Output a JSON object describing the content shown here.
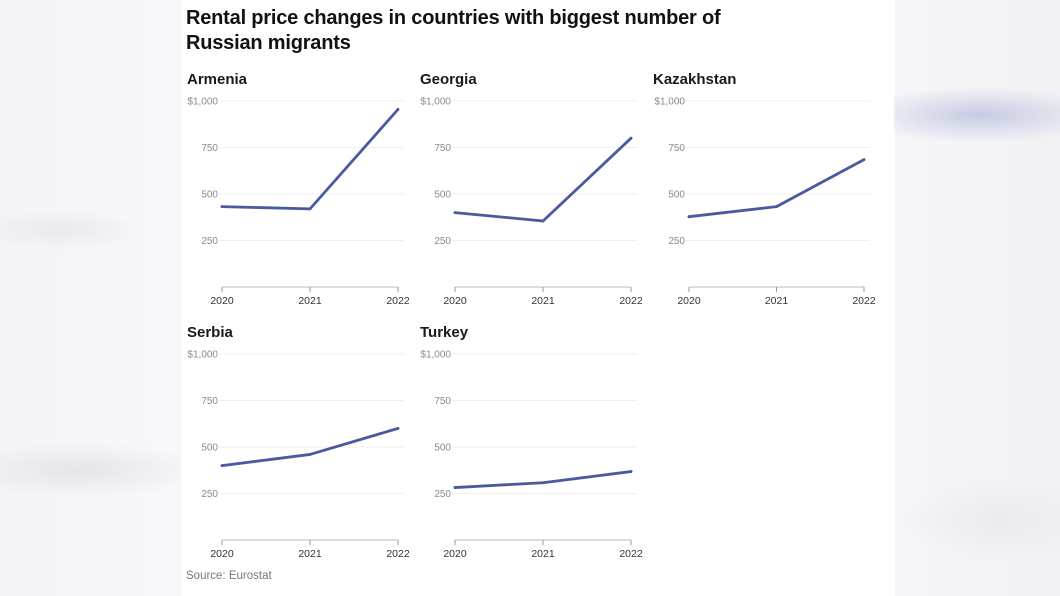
{
  "title": "Rental price changes in countries with biggest number of Russian migrants",
  "source": "Source: Eurostat",
  "colors": {
    "line": "#4a5a9e",
    "grid": "#efefef",
    "axis": "#c9c9c9"
  },
  "chart_data": [
    {
      "type": "line",
      "title": "Armenia",
      "x": [
        "2020",
        "2021",
        "2022"
      ],
      "values": [
        432,
        420,
        955
      ],
      "y_ticks": [
        250,
        500,
        750,
        1000
      ],
      "y_tick_labels": [
        "250",
        "500",
        "750",
        "$1,000"
      ],
      "ylim": [
        0,
        1000
      ]
    },
    {
      "type": "line",
      "title": "Georgia",
      "x": [
        "2020",
        "2021",
        "2022"
      ],
      "values": [
        400,
        355,
        800
      ],
      "y_ticks": [
        250,
        500,
        750,
        1000
      ],
      "y_tick_labels": [
        "250",
        "500",
        "750",
        "$1,000"
      ],
      "ylim": [
        0,
        1000
      ]
    },
    {
      "type": "line",
      "title": "Kazakhstan",
      "x": [
        "2020",
        "2021",
        "2022"
      ],
      "values": [
        378,
        432,
        685
      ],
      "y_ticks": [
        250,
        500,
        750,
        1000
      ],
      "y_tick_labels": [
        "250",
        "500",
        "750",
        "$1,000"
      ],
      "ylim": [
        0,
        1000
      ]
    },
    {
      "type": "line",
      "title": "Serbia",
      "x": [
        "2020",
        "2021",
        "2022"
      ],
      "values": [
        400,
        460,
        600
      ],
      "y_ticks": [
        250,
        500,
        750,
        1000
      ],
      "y_tick_labels": [
        "250",
        "500",
        "750",
        "$1,000"
      ],
      "ylim": [
        0,
        1000
      ]
    },
    {
      "type": "line",
      "title": "Turkey",
      "x": [
        "2020",
        "2021",
        "2022"
      ],
      "values": [
        282,
        308,
        368
      ],
      "y_ticks": [
        250,
        500,
        750,
        1000
      ],
      "y_tick_labels": [
        "250",
        "500",
        "750",
        "$1,000"
      ],
      "ylim": [
        0,
        1000
      ]
    }
  ]
}
